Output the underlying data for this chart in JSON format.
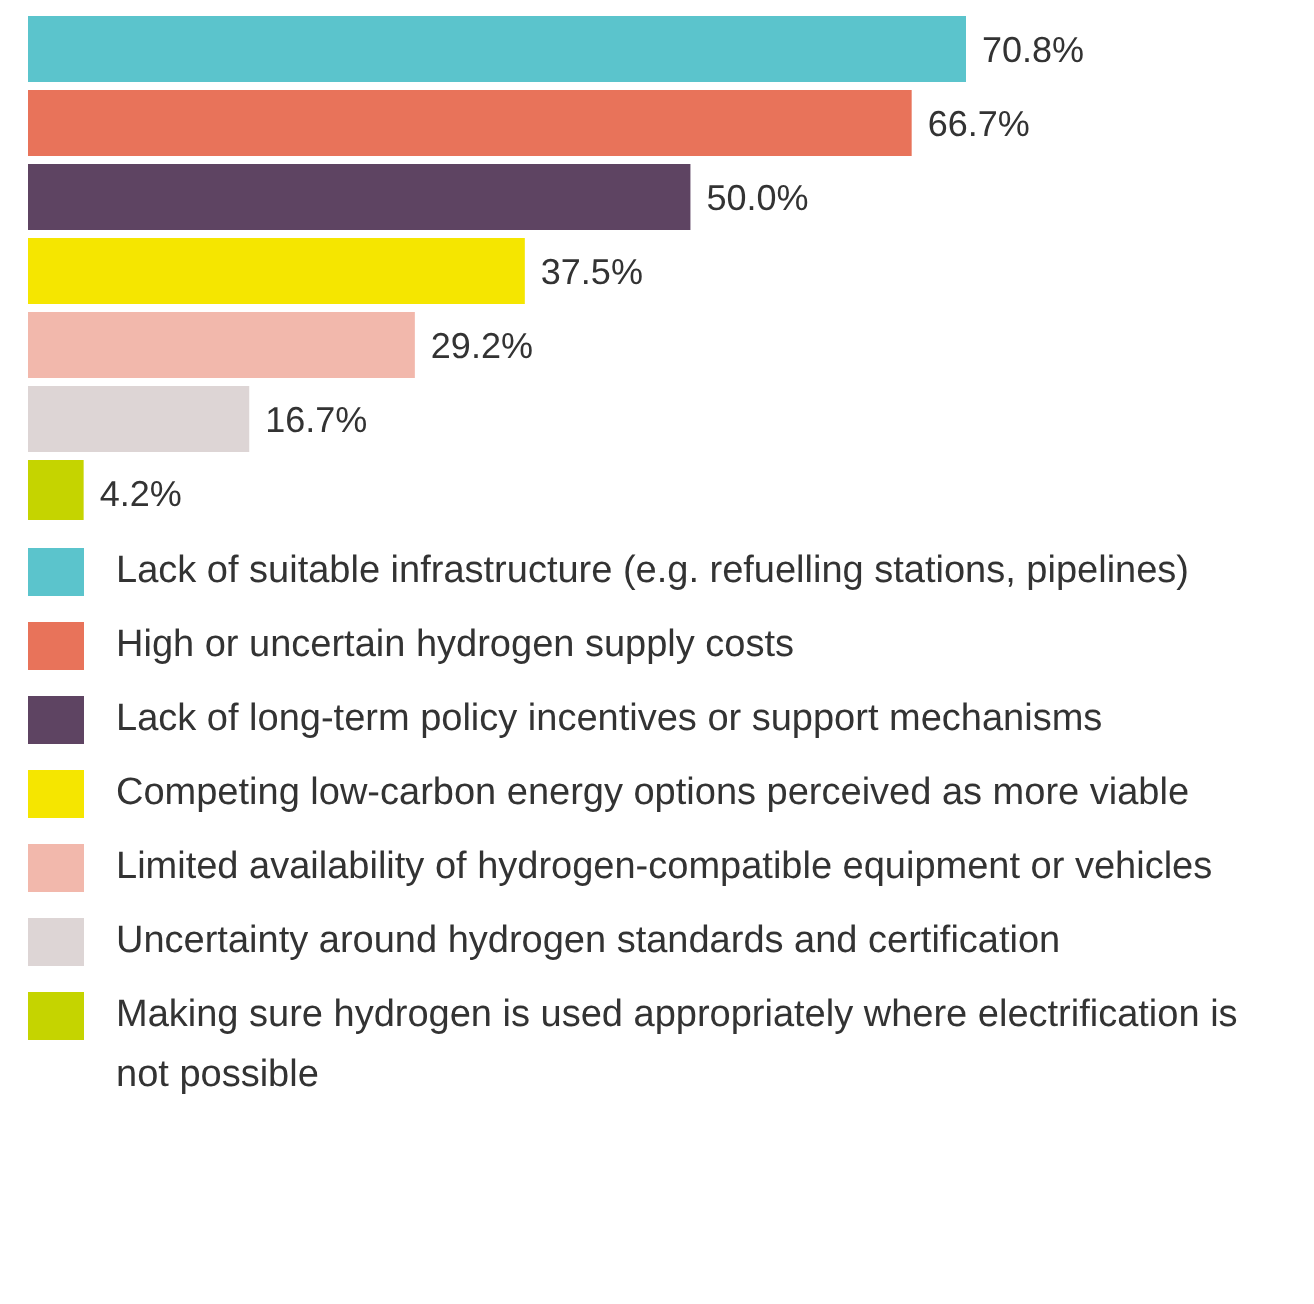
{
  "chart_data": {
    "type": "bar",
    "orientation": "horizontal",
    "categories": [
      null
    ],
    "series": [
      {
        "name": "Lack of suitable infrastructure (e.g. refuelling stations, pipelines)",
        "color": "#5bc4cc",
        "values": [
          70.8
        ],
        "value_labels": [
          "70.8%"
        ]
      },
      {
        "name": "High or uncertain hydrogen supply costs",
        "color": "#e8735a",
        "values": [
          66.7
        ],
        "value_labels": [
          "66.7%"
        ]
      },
      {
        "name": "Lack of long-term policy incentives or support mechanisms",
        "color": "#5e4462",
        "values": [
          50.0
        ],
        "value_labels": [
          "50.0%"
        ]
      },
      {
        "name": "Competing low-carbon energy options perceived as more viable",
        "color": "#f5e600",
        "values": [
          37.5
        ],
        "value_labels": [
          "37.5%"
        ]
      },
      {
        "name": "Limited availability of hydrogen-compatible equipment or vehicles",
        "color": "#f2b8ac",
        "values": [
          29.2
        ],
        "value_labels": [
          "29.2%"
        ]
      },
      {
        "name": "Uncertainty around hydrogen standards and certification",
        "color": "#ddd5d5",
        "values": [
          16.7
        ],
        "value_labels": [
          "16.7%"
        ]
      },
      {
        "name": "Making sure hydrogen is used appropriately where electrification is not possible",
        "color": "#c5d400",
        "values": [
          4.2
        ],
        "value_labels": [
          "4.2%"
        ]
      }
    ],
    "tick_labels": false,
    "legend": "bottom"
  }
}
